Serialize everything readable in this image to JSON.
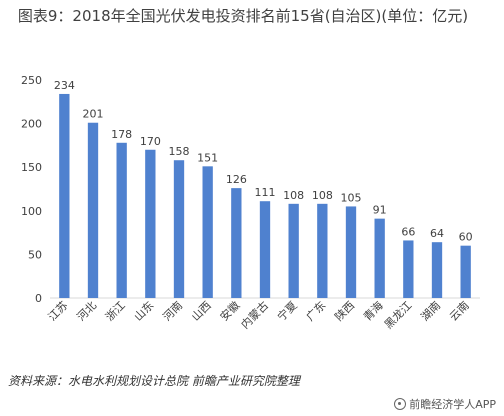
{
  "title": "图表9：2018年全国光伏发电投资排名前15省(自治区)(单位：亿元)",
  "source": "资料来源：水电水利规划设计总院 前瞻产业研究院整理",
  "footer": "前瞻经济学人APP",
  "colors": {
    "bar": "#4f81cf",
    "axis": "#d9d9d9",
    "text": "#404040"
  },
  "chart_data": {
    "type": "bar",
    "categories": [
      "江苏",
      "河北",
      "浙江",
      "山东",
      "河南",
      "山西",
      "安徽",
      "内蒙古",
      "宁夏",
      "广东",
      "陕西",
      "青海",
      "黑龙江",
      "湖南",
      "云南"
    ],
    "values": [
      234,
      201,
      178,
      170,
      158,
      151,
      126,
      111,
      108,
      108,
      105,
      91,
      66,
      64,
      60
    ],
    "yticks": [
      0,
      50,
      100,
      150,
      200,
      250
    ],
    "ylim": [
      0,
      250
    ],
    "grid": false,
    "data_labels": true
  }
}
